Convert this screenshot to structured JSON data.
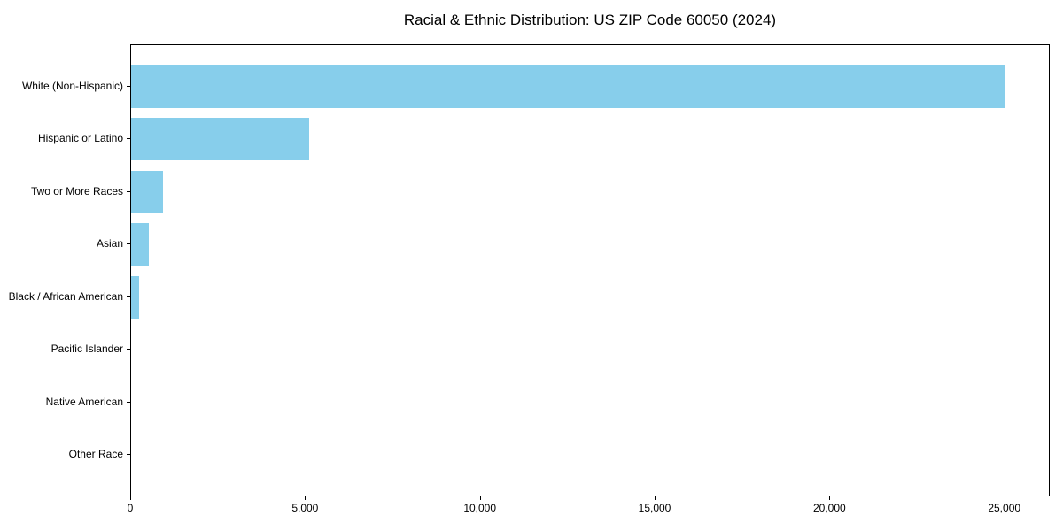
{
  "chart_data": {
    "type": "bar",
    "orientation": "horizontal",
    "title": "Racial & Ethnic Distribution: US ZIP Code 60050 (2024)",
    "categories": [
      "White (Non-Hispanic)",
      "Hispanic or Latino",
      "Two or More Races",
      "Asian",
      "Black / African American",
      "Pacific Islander",
      "Native American",
      "Other Race"
    ],
    "values": [
      25050,
      5100,
      910,
      520,
      240,
      0,
      0,
      0
    ],
    "xlabel": "",
    "ylabel": "",
    "xlim": [
      0,
      26300
    ],
    "xticks": [
      0,
      5000,
      10000,
      15000,
      20000,
      25000
    ],
    "xtick_labels": [
      "0",
      "5,000",
      "10,000",
      "15,000",
      "20,000",
      "25,000"
    ],
    "bar_color": "#87CEEB",
    "axis_color": "#000000",
    "text_color": "#000000",
    "background_color": "#ffffff",
    "grid": false,
    "legend": "none"
  }
}
